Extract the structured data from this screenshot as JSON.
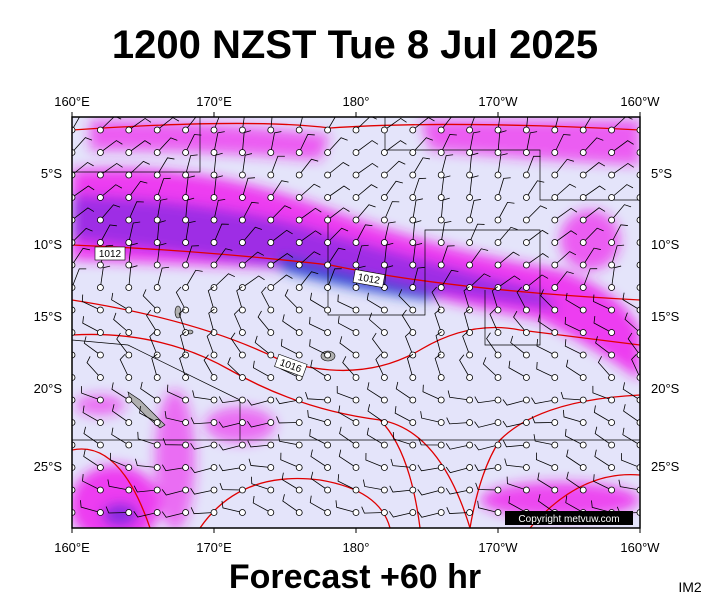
{
  "title": "1200 NZST Tue 8 Jul 2025",
  "footer": "Forecast +60 hr",
  "image_id": "IM2",
  "copyright": "Copyright metvuw.com",
  "longitude_labels_top": [
    "160°E",
    "170°E",
    "180°",
    "170°W",
    "160°W"
  ],
  "longitude_labels_bottom": [
    "160°E",
    "170°E",
    "180°",
    "170°W",
    "160°W"
  ],
  "latitude_labels_left": [
    "5°S",
    "10°S",
    "15°S",
    "20°S",
    "25°S"
  ],
  "latitude_labels_right": [
    "5°S",
    "10°S",
    "15°S",
    "20°S",
    "25°S"
  ],
  "isobar_labels": [
    "1012",
    "1012",
    "1016"
  ]
}
